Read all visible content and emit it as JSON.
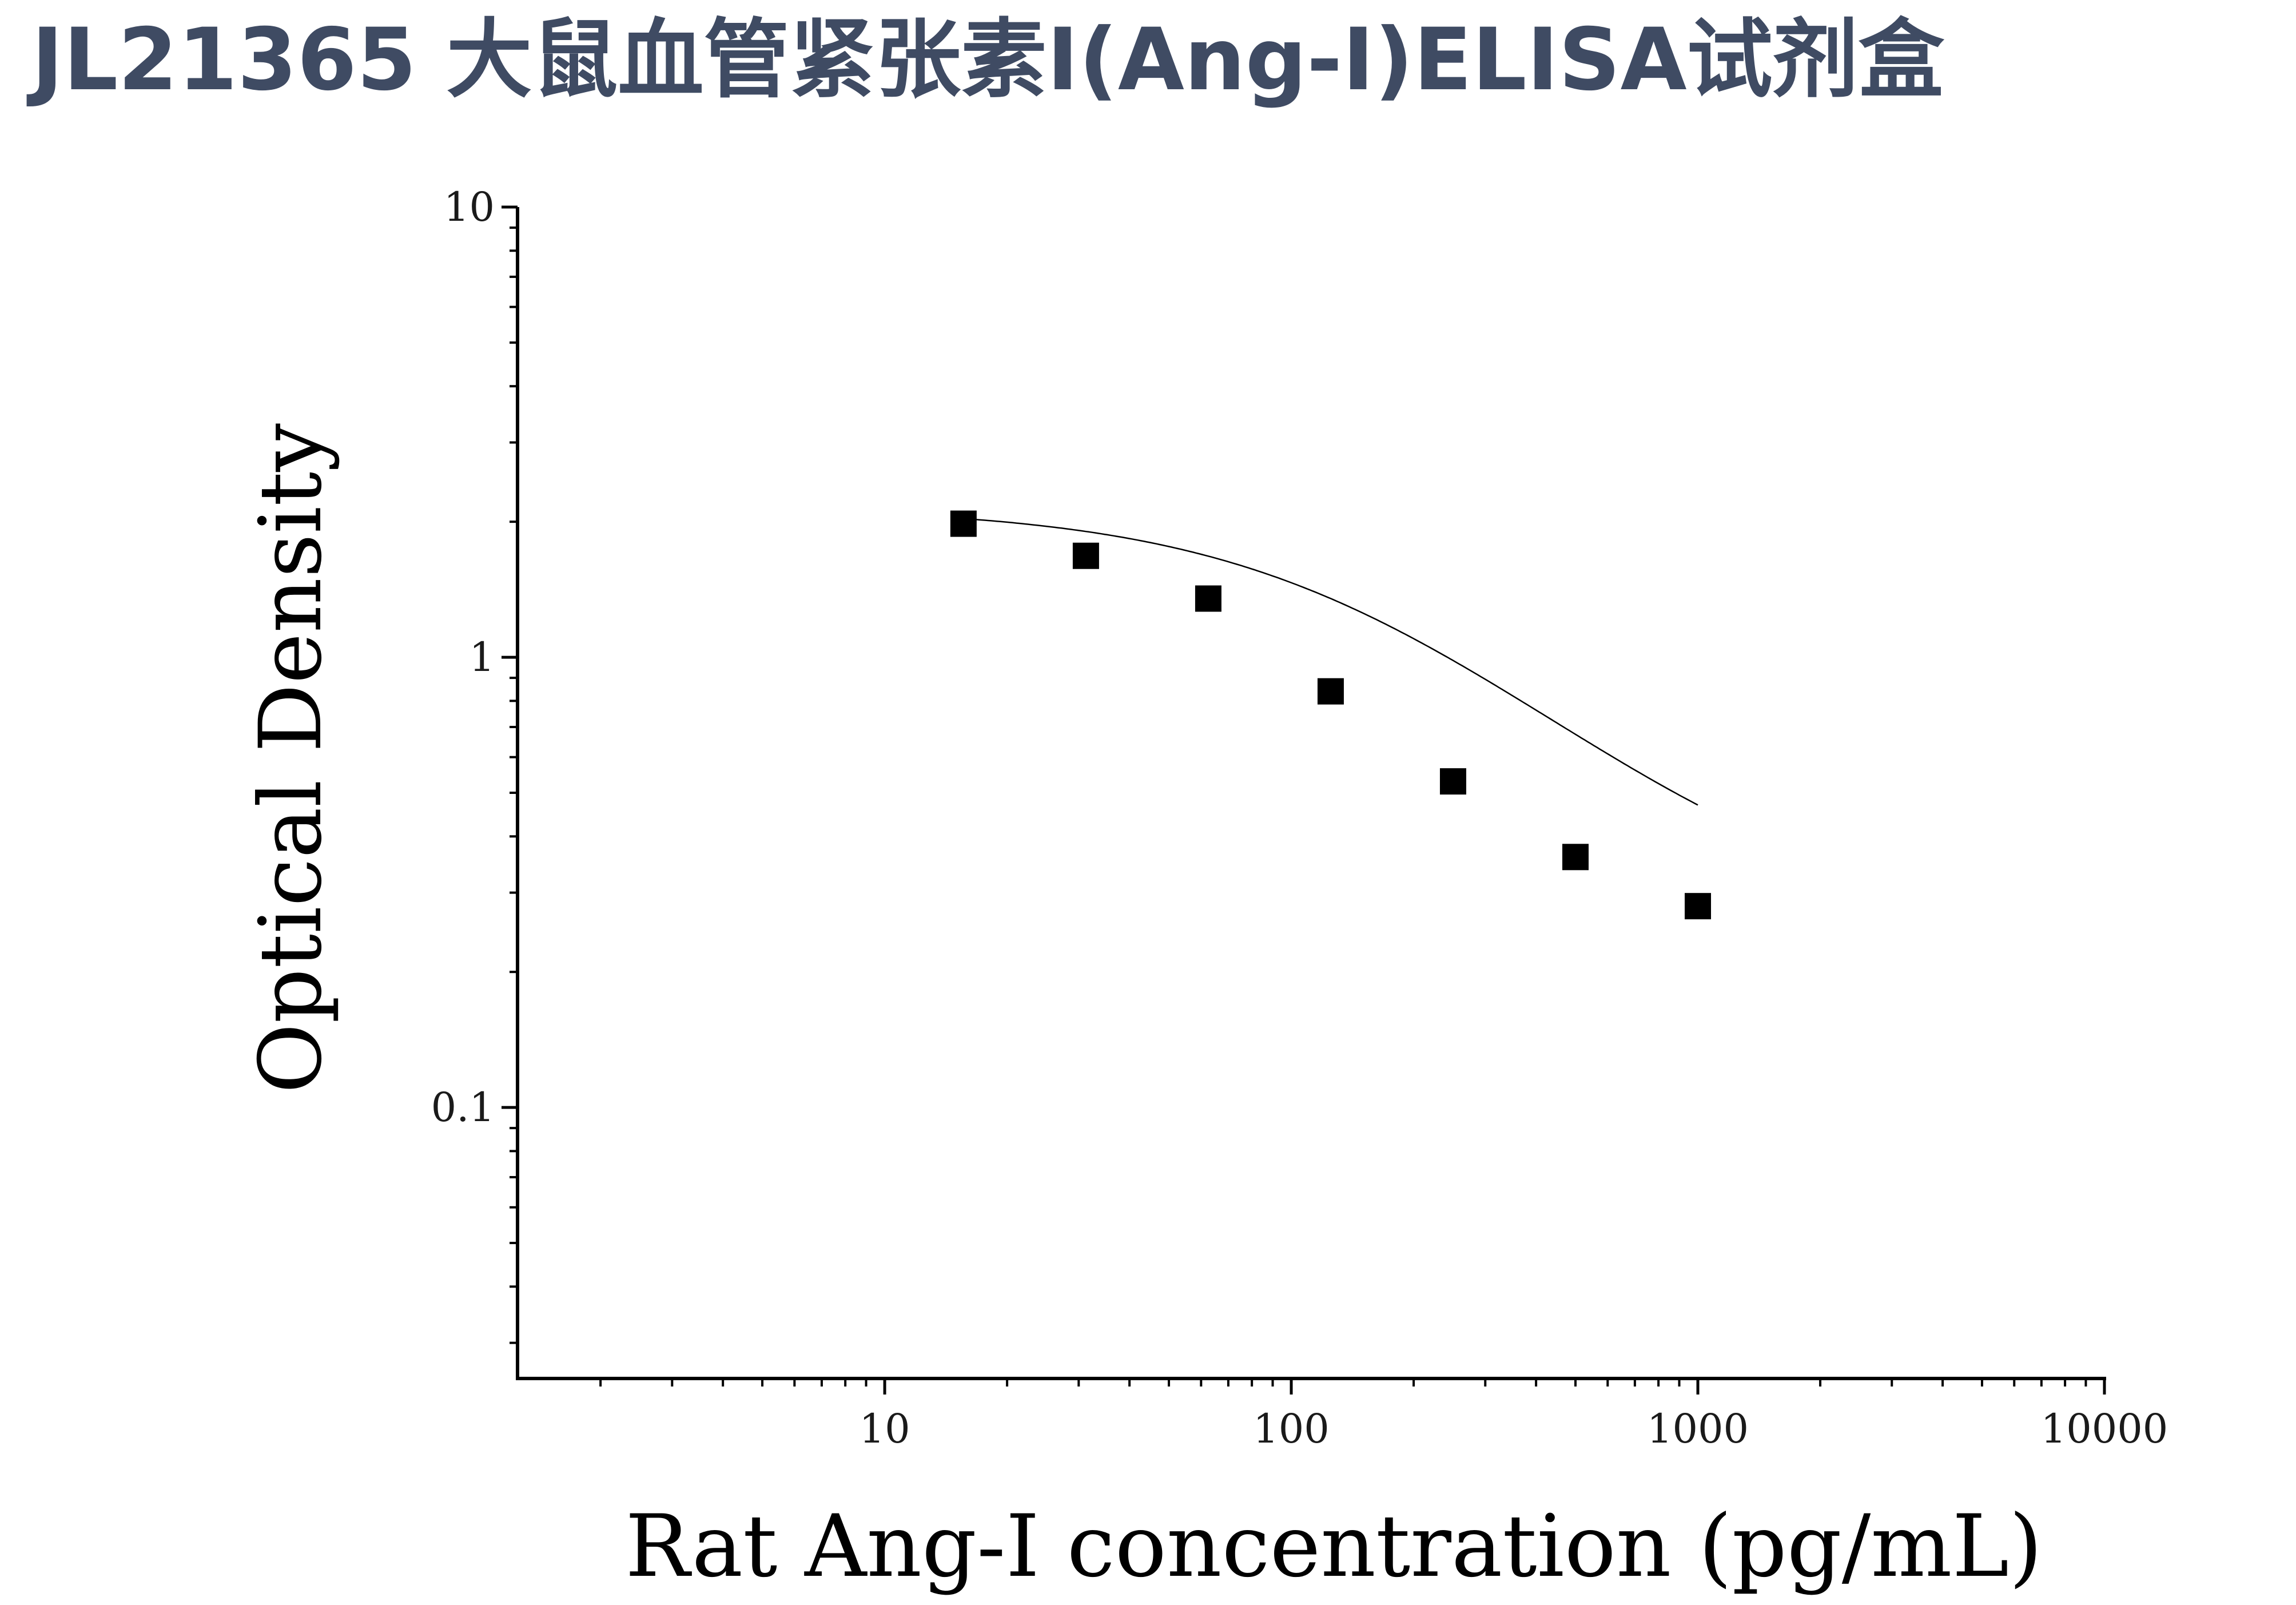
{
  "header": {
    "title": "JL21365 大鼠血管紧张素I(Ang-I)ELISA试剂盒"
  },
  "colors": {
    "title": "#3f4b63",
    "axis": "#000000",
    "marker": "#000000"
  },
  "chart_data": {
    "type": "scatter",
    "xlabel": "Rat Ang-I concentration (pg/mL)",
    "ylabel": "Optical Density",
    "x_scale": "log",
    "y_scale": "log",
    "xlim": [
      1.25,
      10000
    ],
    "ylim": [
      0.025,
      10
    ],
    "x_ticks": [
      {
        "value": 10,
        "label": "10"
      },
      {
        "value": 100,
        "label": "100"
      },
      {
        "value": 1000,
        "label": "1000"
      },
      {
        "value": 10000,
        "label": "10000"
      }
    ],
    "y_ticks": [
      {
        "value": 0.1,
        "label": "0.1"
      },
      {
        "value": 1,
        "label": "1"
      },
      {
        "value": 10,
        "label": "10"
      }
    ],
    "grid": false,
    "series": [
      {
        "marker": "square",
        "x": [
          15.625,
          31.25,
          62.5,
          125,
          250,
          500,
          1000
        ],
        "y": [
          1.98,
          1.68,
          1.35,
          0.84,
          0.53,
          0.36,
          0.28
        ]
      }
    ],
    "fit_curve": {
      "type": "4PL",
      "bottom": 0.245,
      "top": 2.16,
      "ec50": 165,
      "hill": 1.12
    }
  }
}
